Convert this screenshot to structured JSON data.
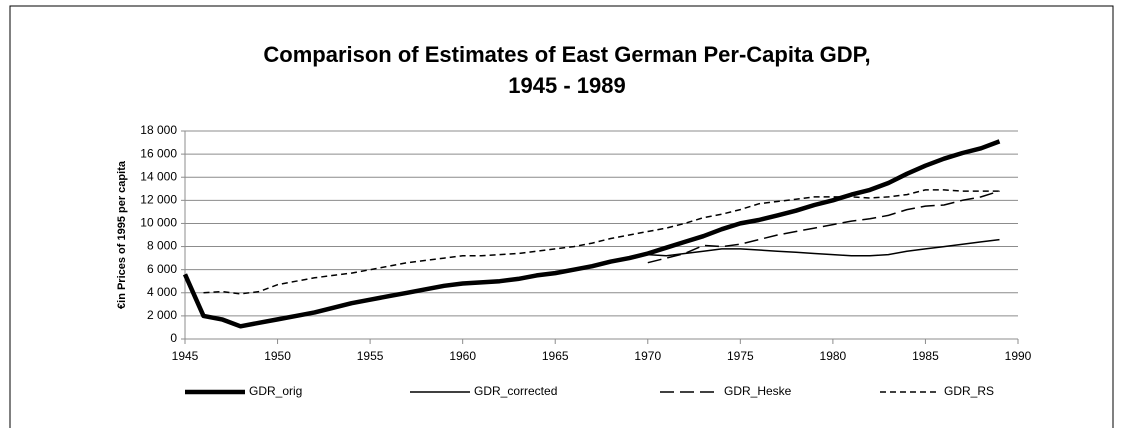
{
  "chart_data": {
    "type": "line",
    "title": [
      "Comparison of Estimates of East German Per-Capita GDP,",
      "1945 - 1989"
    ],
    "y_label": "€in Prices  of 1995 per capita",
    "x": [
      1945,
      1946,
      1947,
      1948,
      1949,
      1950,
      1951,
      1952,
      1953,
      1954,
      1955,
      1956,
      1957,
      1958,
      1959,
      1960,
      1961,
      1962,
      1963,
      1964,
      1965,
      1966,
      1967,
      1968,
      1969,
      1970,
      1971,
      1972,
      1973,
      1974,
      1975,
      1976,
      1977,
      1978,
      1979,
      1980,
      1981,
      1982,
      1983,
      1984,
      1985,
      1986,
      1987,
      1988,
      1989
    ],
    "series": [
      {
        "name": "GDR_orig",
        "color": "#000000",
        "style": "thick",
        "values": [
          5600,
          2000,
          1700,
          1100,
          1400,
          1700,
          2000,
          2300,
          2700,
          3100,
          3400,
          3700,
          4000,
          4300,
          4600,
          4800,
          4900,
          5000,
          5200,
          5500,
          5700,
          6000,
          6300,
          6700,
          7000,
          7400,
          7900,
          8400,
          8900,
          9500,
          10000,
          10300,
          10700,
          11100,
          11600,
          12000,
          12500,
          12900,
          13500,
          14300,
          15000,
          15600,
          16100,
          16500,
          17100
        ]
      },
      {
        "name": "GDR_corrected",
        "color": "#000000",
        "style": "solid",
        "values": [
          5600,
          2000,
          1700,
          1100,
          1400,
          1700,
          2000,
          2300,
          2700,
          3100,
          3400,
          3700,
          4000,
          4300,
          4600,
          4800,
          4900,
          5000,
          5200,
          5500,
          5700,
          6000,
          6300,
          6700,
          6900,
          7300,
          7200,
          7400,
          7600,
          7800,
          7800,
          7700,
          7600,
          7500,
          7400,
          7300,
          7200,
          7200,
          7300,
          7600,
          7800,
          8000,
          8200,
          8400,
          8600
        ]
      },
      {
        "name": "GDR_Heske",
        "color": "#000000",
        "style": "long-dash",
        "values": [
          null,
          null,
          null,
          null,
          null,
          null,
          null,
          null,
          null,
          null,
          null,
          null,
          null,
          null,
          null,
          null,
          null,
          null,
          null,
          null,
          null,
          null,
          null,
          null,
          null,
          6600,
          7000,
          7400,
          8100,
          8000,
          8200,
          8600,
          9000,
          9300,
          9600,
          9900,
          10200,
          10400,
          10700,
          11200,
          11500,
          11600,
          12000,
          12300,
          12800
        ]
      },
      {
        "name": "GDR_RS",
        "color": "#000000",
        "style": "short-dash",
        "values": [
          null,
          4000,
          4100,
          3900,
          4100,
          4700,
          5000,
          5300,
          5500,
          5700,
          6000,
          6300,
          6600,
          6800,
          7000,
          7200,
          7200,
          7300,
          7400,
          7600,
          7800,
          8000,
          8300,
          8700,
          9000,
          9300,
          9600,
          10000,
          10500,
          10800,
          11200,
          11700,
          11900,
          12100,
          12300,
          12300,
          12300,
          12200,
          12300,
          12500,
          12900,
          12900,
          12800,
          12800,
          12800
        ]
      }
    ],
    "xlim": [
      1945,
      1990
    ],
    "xticks": [
      1945,
      1950,
      1955,
      1960,
      1965,
      1970,
      1975,
      1980,
      1985,
      1990
    ],
    "ylim": [
      0,
      18000
    ],
    "yticks": [
      0,
      {
        "value": 2000,
        "label": "2 000"
      },
      {
        "value": 4000,
        "label": "4 000"
      },
      {
        "value": 6000,
        "label": "6 000"
      },
      {
        "value": 8000,
        "label": "8 000"
      },
      {
        "value": 10000,
        "label": "10 000"
      },
      {
        "value": 12000,
        "label": "12 000"
      },
      {
        "value": 14000,
        "label": "14 000"
      },
      {
        "value": 16000,
        "label": "16 000"
      },
      {
        "value": 18000,
        "label": "18 000"
      }
    ],
    "grid": true,
    "legend": "bottom"
  }
}
